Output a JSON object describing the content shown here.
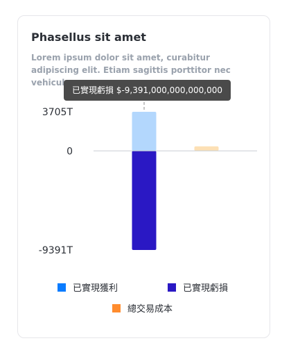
{
  "card": {
    "title": "Phasellus sit amet",
    "subtitle": "Lorem ipsum dolor sit amet, curabitur adipiscing elit. Etiam sagittis porttitor nec vehicula."
  },
  "tooltip": {
    "text": "已實現虧損 $-9,391,000,000,000,000"
  },
  "chart_data": {
    "type": "bar",
    "stacked": true,
    "categories": [
      "",
      ""
    ],
    "series": [
      {
        "name": "已實現獲利",
        "color": "#b3d7fd",
        "legend_color": "#0a7cff",
        "values": [
          3705,
          0
        ]
      },
      {
        "name": "已實現虧損",
        "color": "#2a18c4",
        "legend_color": "#2a18c4",
        "values": [
          -9391,
          0
        ]
      },
      {
        "name": "總交易成本",
        "color": "#fde0b5",
        "legend_color": "#ff8c2e",
        "values": [
          0,
          430
        ]
      }
    ],
    "y_ticks": [
      {
        "value": 3705,
        "label": "3705T"
      },
      {
        "value": 0,
        "label": "0"
      },
      {
        "value": -9391,
        "label": "-9391T"
      }
    ],
    "ylim": [
      -9391,
      3705
    ],
    "hover_category_index": 0,
    "legend_position": "bottom"
  }
}
